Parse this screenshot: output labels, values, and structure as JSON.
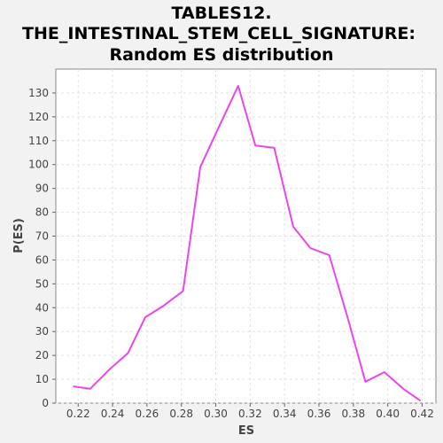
{
  "title_lines": [
    "TABLES12.",
    "THE_INTESTINAL_STEM_CELL_SIGNATURE:",
    "Random ES distribution"
  ],
  "chart_data": {
    "type": "line",
    "xlabel": "ES",
    "ylabel": "P(ES)",
    "xlim": [
      0.207,
      0.428
    ],
    "ylim": [
      0,
      140
    ],
    "xticks": [
      0.22,
      0.24,
      0.26,
      0.28,
      0.3,
      0.32,
      0.34,
      0.36,
      0.38,
      0.4,
      0.42
    ],
    "xtick_labels": [
      "0.22",
      "0.24",
      "0.26",
      "0.28",
      "0.30",
      "0.32",
      "0.34",
      "0.36",
      "0.38",
      "0.40",
      "0.42"
    ],
    "yticks": [
      0,
      10,
      20,
      30,
      40,
      50,
      60,
      70,
      80,
      90,
      100,
      110,
      120,
      130
    ],
    "ytick_labels": [
      "0",
      "10",
      "20",
      "30",
      "40",
      "50",
      "60",
      "70",
      "80",
      "90",
      "100",
      "110",
      "120",
      "130"
    ],
    "grid": true,
    "series": [
      {
        "color": "#ee44ee",
        "x": [
          0.217,
          0.227,
          0.238,
          0.249,
          0.259,
          0.27,
          0.281,
          0.291,
          0.302,
          0.313,
          0.323,
          0.334,
          0.345,
          0.355,
          0.366,
          0.377,
          0.387,
          0.398,
          0.409,
          0.419
        ],
        "y": [
          7,
          6,
          14,
          21,
          36,
          41,
          47,
          99,
          116,
          133,
          108,
          107,
          74,
          65,
          62,
          35,
          9,
          13,
          6,
          1
        ]
      }
    ]
  }
}
